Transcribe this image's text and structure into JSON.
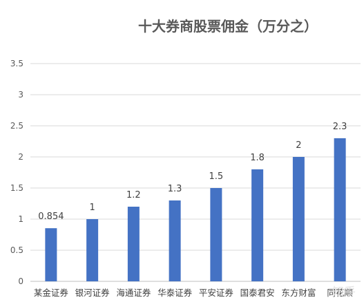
{
  "chart_data": {
    "type": "bar",
    "title": "十大券商股票佣金（万分之）",
    "xlabel": "",
    "ylabel": "",
    "categories": [
      "某金证券",
      "银河证券",
      "海通证券",
      "华泰证券",
      "平安证券",
      "国泰君安",
      "东方财富",
      "同花顺"
    ],
    "values": [
      0.854,
      1,
      1.2,
      1.3,
      1.5,
      1.8,
      2,
      2.3
    ],
    "value_labels": [
      "0.854",
      "1",
      "1.2",
      "1.3",
      "1.5",
      "1.8",
      "2",
      "2.3"
    ],
    "ylim": [
      0,
      3.5
    ],
    "yticks": [
      "0",
      "0.5",
      "1",
      "1.5",
      "2",
      "2.5",
      "3",
      "3.5"
    ],
    "grid": true,
    "legend": "none",
    "bar_color": "#4472c4"
  },
  "watermark": "知乎"
}
